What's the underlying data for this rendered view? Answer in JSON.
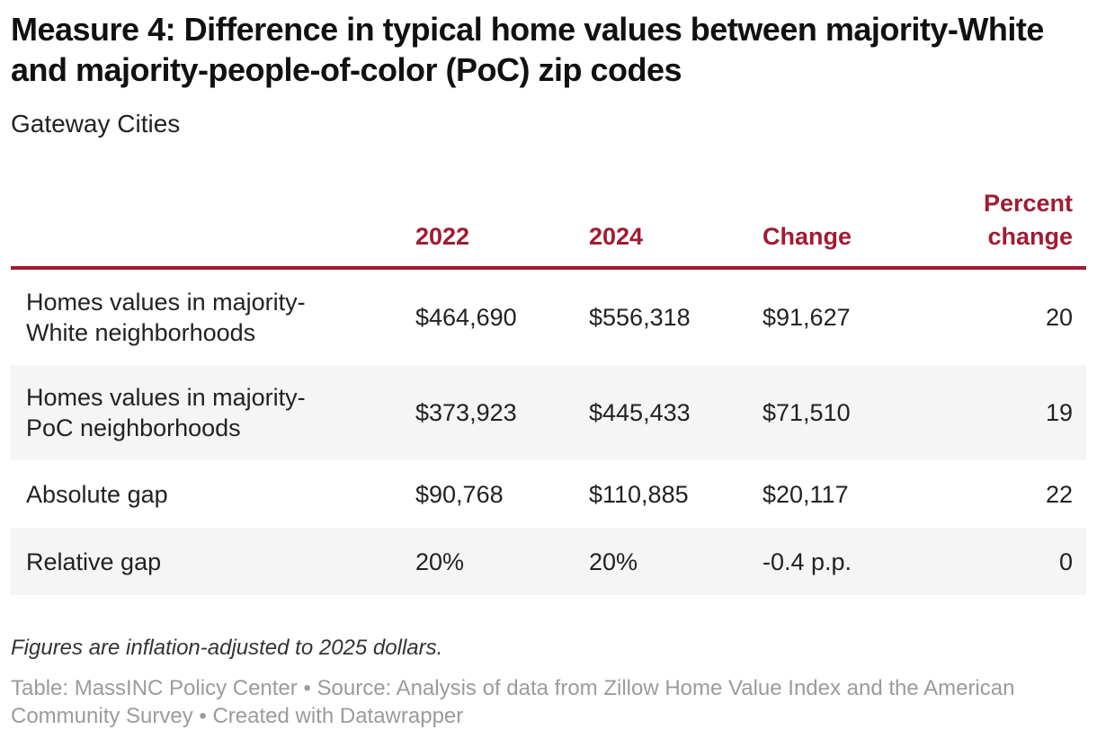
{
  "colors": {
    "accent_red": "#a01c33",
    "row_alt_bg": "#f5f5f5",
    "attribution_gray": "#9b9b9b"
  },
  "chart_data": {
    "type": "table",
    "title": "Measure 4: Difference in typical home values between majority-White and majority-people-of-color (PoC) zip codes",
    "subtitle": "Gateway Cities",
    "columns": [
      "",
      "2022",
      "2024",
      "Change",
      "Percent change"
    ],
    "rows": [
      {
        "label": "Homes values in majority-White neighborhoods",
        "values": [
          "$464,690",
          "$556,318",
          "$91,627",
          "20"
        ]
      },
      {
        "label": "Homes values in majority-PoC neighborhoods",
        "values": [
          "$373,923",
          "$445,433",
          "$71,510",
          "19"
        ]
      },
      {
        "label": "Absolute gap",
        "values": [
          "$90,768",
          "$110,885",
          "$20,117",
          "22"
        ]
      },
      {
        "label": "Relative gap",
        "values": [
          "20%",
          "20%",
          "-0.4 p.p.",
          "0"
        ]
      }
    ],
    "layout_hints": {
      "column_alignment": [
        "left",
        "left",
        "left",
        "left",
        "right"
      ],
      "zebra_striping": true,
      "header_rule": "thick red line below header"
    },
    "note": "Figures are inflation-adjusted to 2025 dollars.",
    "attribution": "Table: MassINC Policy Center • Source: Analysis of data from Zillow Home Value Index and the American Community Survey • Created with Datawrapper"
  }
}
